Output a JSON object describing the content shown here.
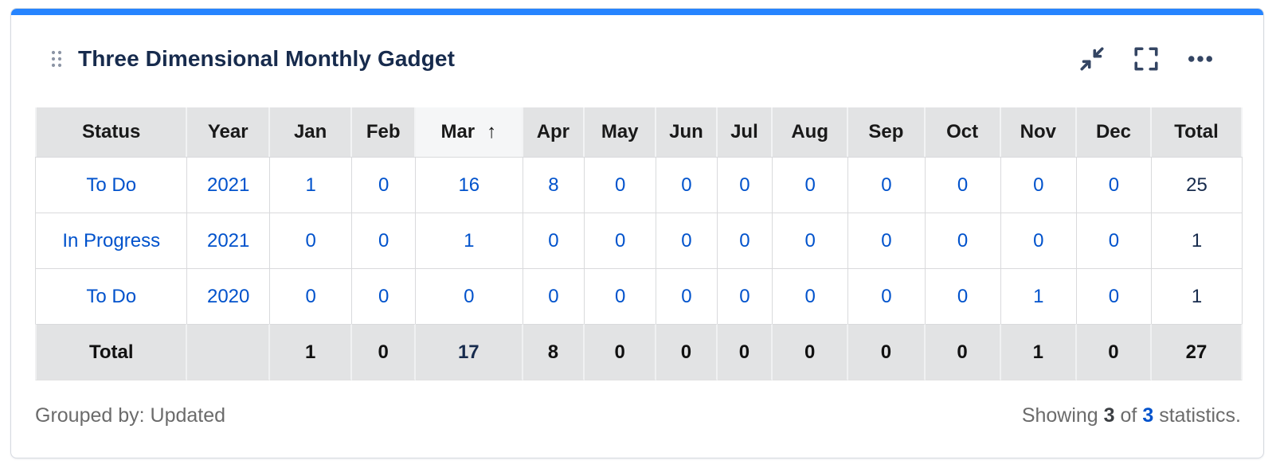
{
  "card": {
    "title": "Three Dimensional Monthly Gadget",
    "accent_color": "#2684FF",
    "link_color": "#0052CC"
  },
  "toolbar": {
    "icons": [
      "collapse-icon",
      "fullscreen-icon",
      "ellipsis-icon"
    ]
  },
  "table": {
    "columns": [
      "Status",
      "Year",
      "Jan",
      "Feb",
      "Mar",
      "Apr",
      "May",
      "Jun",
      "Jul",
      "Aug",
      "Sep",
      "Oct",
      "Nov",
      "Dec",
      "Total"
    ],
    "sorted_column": "Mar",
    "sort_direction": "ascending",
    "sort_arrow": "↑",
    "rows": [
      {
        "status": "To Do",
        "year": "2021",
        "values": [
          "1",
          "0",
          "16",
          "8",
          "0",
          "0",
          "0",
          "0",
          "0",
          "0",
          "0",
          "0"
        ],
        "total": "25"
      },
      {
        "status": "In Progress",
        "year": "2021",
        "values": [
          "0",
          "0",
          "1",
          "0",
          "0",
          "0",
          "0",
          "0",
          "0",
          "0",
          "0",
          "0"
        ],
        "total": "1"
      },
      {
        "status": "To Do",
        "year": "2020",
        "values": [
          "0",
          "0",
          "0",
          "0",
          "0",
          "0",
          "0",
          "0",
          "0",
          "0",
          "1",
          "0"
        ],
        "total": "1"
      }
    ],
    "totals": {
      "label": "Total",
      "values": [
        "1",
        "0",
        "17",
        "8",
        "0",
        "0",
        "0",
        "0",
        "0",
        "0",
        "1",
        "0"
      ],
      "total": "27"
    }
  },
  "footer": {
    "grouped_by": "Grouped by: Updated",
    "showing_prefix": "Showing",
    "showing_count": "3",
    "of_word": "of",
    "total_count": "3",
    "suffix": "statistics."
  }
}
